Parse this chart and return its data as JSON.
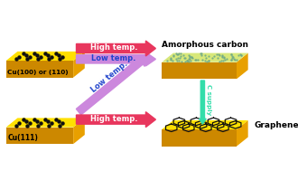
{
  "bg_color": "#ffffff",
  "gold_top": "#FFE000",
  "gold_right": "#E8A000",
  "gold_front": "#CC8800",
  "gold_bottom": "#AA6600",
  "amorphous_top": "#D8E87A",
  "dot_color": "#111111",
  "hex_color": "#111111",
  "amorphous_dot_color": "#70AA88",
  "arrow_high_color": "#E8365D",
  "arrow_low_color": "#CC88DD",
  "c_supply_color": "#33DDAA",
  "title_top": "Amorphous carbon",
  "title_bottom": "Graphene",
  "label_top_left": "Cu(100) or (110)",
  "label_bottom_left": "Cu(111)",
  "text_high_temp": "High temp.",
  "text_low_temp": "Low temp.",
  "text_c_supply": "C supply",
  "figsize": [
    3.3,
    1.89
  ],
  "dpi": 100
}
